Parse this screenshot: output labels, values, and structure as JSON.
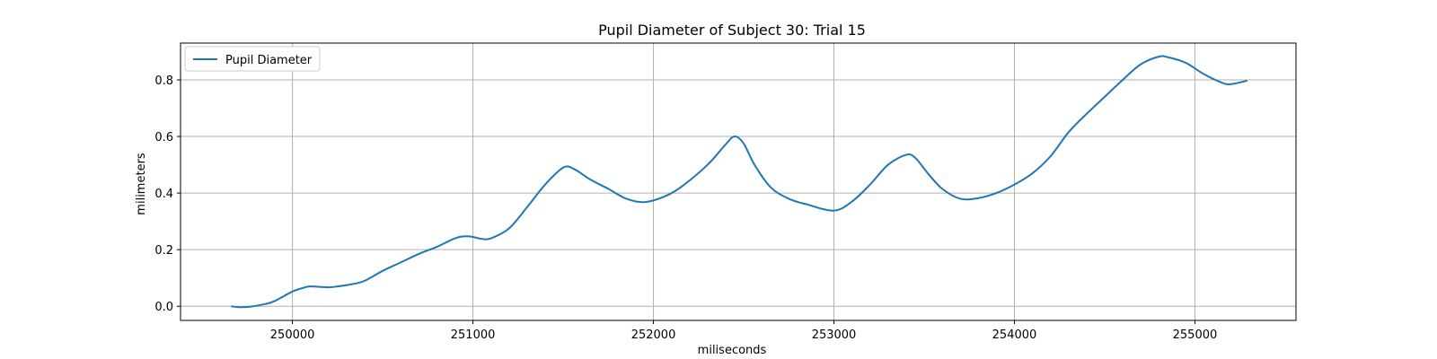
{
  "chart_data": {
    "type": "line",
    "title": "Pupil Diameter of Subject 30: Trial 15",
    "xlabel": "miliseconds",
    "ylabel": "milimeters",
    "xlim": [
      249380,
      255560
    ],
    "ylim": [
      -0.05,
      0.93
    ],
    "xticks": [
      250000,
      251000,
      252000,
      253000,
      254000,
      255000
    ],
    "yticks": [
      0.0,
      0.2,
      0.4,
      0.6,
      0.8
    ],
    "ytick_labels": [
      "0.0",
      "0.2",
      "0.4",
      "0.6",
      "0.8"
    ],
    "grid": true,
    "legend_position": "top-left",
    "series": [
      {
        "name": "Pupil Diameter",
        "color": "#1f77b4",
        "points": [
          [
            249660,
            0.0
          ],
          [
            249700,
            -0.003
          ],
          [
            249760,
            -0.002
          ],
          [
            249850,
            0.008
          ],
          [
            249900,
            0.018
          ],
          [
            250000,
            0.052
          ],
          [
            250060,
            0.065
          ],
          [
            250100,
            0.07
          ],
          [
            250200,
            0.067
          ],
          [
            250250,
            0.07
          ],
          [
            250330,
            0.078
          ],
          [
            250400,
            0.09
          ],
          [
            250500,
            0.125
          ],
          [
            250600,
            0.155
          ],
          [
            250700,
            0.185
          ],
          [
            250800,
            0.21
          ],
          [
            250900,
            0.24
          ],
          [
            250950,
            0.247
          ],
          [
            251000,
            0.245
          ],
          [
            251050,
            0.238
          ],
          [
            251100,
            0.24
          ],
          [
            251200,
            0.275
          ],
          [
            251300,
            0.35
          ],
          [
            251400,
            0.43
          ],
          [
            251500,
            0.49
          ],
          [
            251560,
            0.485
          ],
          [
            251650,
            0.448
          ],
          [
            251750,
            0.415
          ],
          [
            251850,
            0.38
          ],
          [
            251950,
            0.368
          ],
          [
            252050,
            0.385
          ],
          [
            252150,
            0.42
          ],
          [
            252300,
            0.5
          ],
          [
            252400,
            0.572
          ],
          [
            252450,
            0.6
          ],
          [
            252500,
            0.575
          ],
          [
            252560,
            0.5
          ],
          [
            252650,
            0.42
          ],
          [
            252750,
            0.38
          ],
          [
            252850,
            0.36
          ],
          [
            253000,
            0.338
          ],
          [
            253100,
            0.37
          ],
          [
            253200,
            0.43
          ],
          [
            253300,
            0.5
          ],
          [
            253400,
            0.535
          ],
          [
            253450,
            0.525
          ],
          [
            253520,
            0.47
          ],
          [
            253600,
            0.415
          ],
          [
            253700,
            0.38
          ],
          [
            253800,
            0.382
          ],
          [
            253900,
            0.4
          ],
          [
            254000,
            0.43
          ],
          [
            254100,
            0.47
          ],
          [
            254200,
            0.53
          ],
          [
            254300,
            0.615
          ],
          [
            254400,
            0.68
          ],
          [
            254500,
            0.74
          ],
          [
            254600,
            0.8
          ],
          [
            254700,
            0.855
          ],
          [
            254800,
            0.882
          ],
          [
            254850,
            0.88
          ],
          [
            254950,
            0.86
          ],
          [
            255050,
            0.82
          ],
          [
            255150,
            0.79
          ],
          [
            255200,
            0.785
          ],
          [
            255290,
            0.797
          ]
        ]
      }
    ]
  }
}
